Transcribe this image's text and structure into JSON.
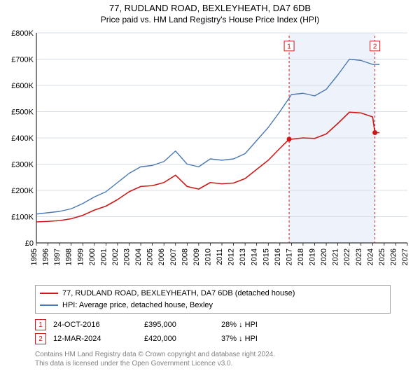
{
  "title": "77, RUDLAND ROAD, BEXLEYHEATH, DA7 6DB",
  "subtitle": "Price paid vs. HM Land Registry's House Price Index (HPI)",
  "chart": {
    "type": "line",
    "background_color": "#ffffff",
    "highlight_band_color": "#eef2fa",
    "highlight_start": 2016.8,
    "highlight_end": 2024.2,
    "xlim": [
      1995,
      2027
    ],
    "ylim": [
      0,
      800000
    ],
    "ytick_step": 100000,
    "ytick_labels": [
      "£0",
      "£100K",
      "£200K",
      "£300K",
      "£400K",
      "£500K",
      "£600K",
      "£700K",
      "£800K"
    ],
    "xtick_step": 1,
    "xtick_labels": [
      "1995",
      "1996",
      "1997",
      "1998",
      "1999",
      "2000",
      "2001",
      "2002",
      "2003",
      "2004",
      "2005",
      "2006",
      "2007",
      "2008",
      "2009",
      "2010",
      "2011",
      "2012",
      "2013",
      "2014",
      "2015",
      "2016",
      "2017",
      "2018",
      "2019",
      "2020",
      "2021",
      "2022",
      "2023",
      "2024",
      "2025",
      "2026",
      "2027"
    ],
    "grid_color": "#d7dde5",
    "axis_label_fontsize": 11,
    "series": {
      "hpi": {
        "label": "HPI: Average price, detached house, Bexley",
        "color": "#4a78b5",
        "line_width": 1.4,
        "data": [
          [
            1995,
            110000
          ],
          [
            1996,
            115000
          ],
          [
            1997,
            120000
          ],
          [
            1998,
            130000
          ],
          [
            1999,
            150000
          ],
          [
            2000,
            175000
          ],
          [
            2001,
            195000
          ],
          [
            2002,
            230000
          ],
          [
            2003,
            265000
          ],
          [
            2004,
            290000
          ],
          [
            2005,
            295000
          ],
          [
            2006,
            310000
          ],
          [
            2007,
            350000
          ],
          [
            2008,
            300000
          ],
          [
            2009,
            290000
          ],
          [
            2010,
            320000
          ],
          [
            2011,
            315000
          ],
          [
            2012,
            320000
          ],
          [
            2013,
            340000
          ],
          [
            2014,
            390000
          ],
          [
            2015,
            440000
          ],
          [
            2016,
            500000
          ],
          [
            2017,
            565000
          ],
          [
            2018,
            570000
          ],
          [
            2019,
            560000
          ],
          [
            2020,
            585000
          ],
          [
            2021,
            640000
          ],
          [
            2022,
            700000
          ],
          [
            2023,
            695000
          ],
          [
            2024,
            680000
          ],
          [
            2024.6,
            680000
          ]
        ]
      },
      "property": {
        "label": "77, RUDLAND ROAD, BEXLEYHEATH, DA7 6DB (detached house)",
        "color": "#cc1818",
        "line_width": 1.6,
        "data": [
          [
            1995,
            80000
          ],
          [
            1996,
            82000
          ],
          [
            1997,
            85000
          ],
          [
            1998,
            92000
          ],
          [
            1999,
            105000
          ],
          [
            2000,
            125000
          ],
          [
            2001,
            140000
          ],
          [
            2002,
            165000
          ],
          [
            2003,
            195000
          ],
          [
            2004,
            215000
          ],
          [
            2005,
            218000
          ],
          [
            2006,
            230000
          ],
          [
            2007,
            258000
          ],
          [
            2008,
            215000
          ],
          [
            2009,
            205000
          ],
          [
            2010,
            230000
          ],
          [
            2011,
            225000
          ],
          [
            2012,
            228000
          ],
          [
            2013,
            245000
          ],
          [
            2014,
            280000
          ],
          [
            2015,
            315000
          ],
          [
            2016,
            360000
          ],
          [
            2016.8,
            395000
          ],
          [
            2017,
            395000
          ],
          [
            2018,
            400000
          ],
          [
            2019,
            398000
          ],
          [
            2020,
            415000
          ],
          [
            2021,
            455000
          ],
          [
            2022,
            498000
          ],
          [
            2023,
            495000
          ],
          [
            2024,
            480000
          ],
          [
            2024.2,
            420000
          ],
          [
            2024.6,
            420000
          ]
        ]
      }
    },
    "markers": [
      {
        "id": "1",
        "x": 2016.8,
        "y": 395000,
        "color": "#cc1818",
        "badge_y": 750000
      },
      {
        "id": "2",
        "x": 2024.2,
        "y": 420000,
        "color": "#cc1818",
        "badge_y": 750000
      }
    ],
    "marker_radius": 3.5,
    "badge_size": 14
  },
  "transactions": [
    {
      "id": "1",
      "date": "24-OCT-2016",
      "price": "£395,000",
      "diff": "28% ↓ HPI",
      "badge_color": "#cc1818"
    },
    {
      "id": "2",
      "date": "12-MAR-2024",
      "price": "£420,000",
      "diff": "37% ↓ HPI",
      "badge_color": "#cc1818"
    }
  ],
  "footnote_lines": [
    "Contains HM Land Registry data © Crown copyright and database right 2024.",
    "This data is licensed under the Open Government Licence v3.0."
  ]
}
